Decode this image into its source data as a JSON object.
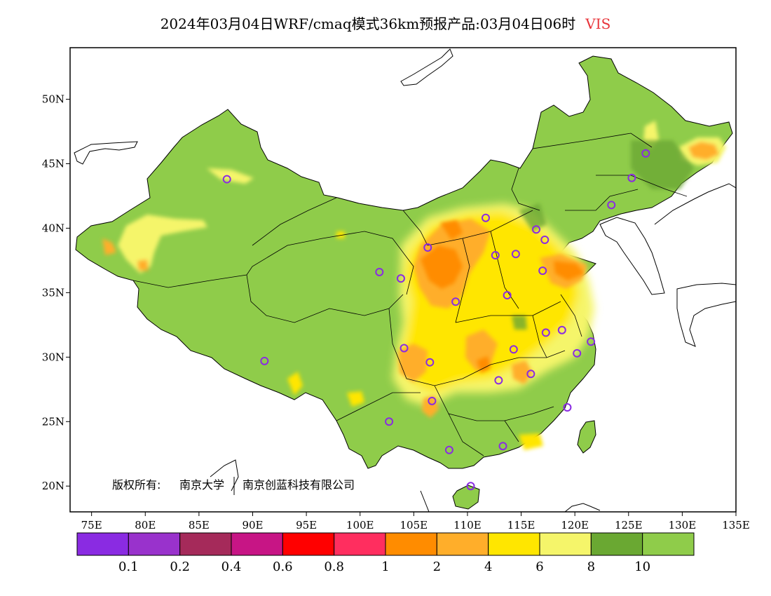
{
  "title": {
    "main": "2024年03月04日WRF/cmaq模式36km预报产品:03月04日06时",
    "variable": "VIS",
    "variable_color": "#e8343a"
  },
  "axes": {
    "lon_ticks": [
      "75E",
      "80E",
      "85E",
      "90E",
      "95E",
      "100E",
      "105E",
      "110E",
      "115E",
      "120E",
      "125E",
      "130E",
      "135E"
    ],
    "lat_ticks": [
      "50N",
      "45N",
      "40N",
      "35N",
      "30N",
      "25N",
      "20N"
    ],
    "lon_range": [
      73,
      135
    ],
    "lat_range": [
      18,
      54
    ]
  },
  "copyright": {
    "prefix": "版权所有:",
    "org1": "南京大学",
    "org2": "南京创蓝科技有限公司"
  },
  "legend": {
    "colors": [
      "#8a2be2",
      "#9932cc",
      "#a52a5a",
      "#c71585",
      "#ff0000",
      "#ff2e5f",
      "#ff8c00",
      "#ffae2a",
      "#ffe600",
      "#f5f56a",
      "#6aa832",
      "#8fcc4a"
    ],
    "labels": [
      "0.1",
      "0.2",
      "0.4",
      "0.6",
      "0.8",
      "1",
      "2",
      "4",
      "6",
      "8",
      "10"
    ]
  },
  "stations": [
    [
      87.6,
      43.8
    ],
    [
      91.1,
      29.7
    ],
    [
      101.8,
      36.6
    ],
    [
      103.8,
      36.1
    ],
    [
      106.3,
      38.5
    ],
    [
      111.7,
      40.8
    ],
    [
      112.6,
      37.9
    ],
    [
      114.5,
      38.0
    ],
    [
      116.4,
      39.9
    ],
    [
      117.2,
      39.1
    ],
    [
      117.0,
      36.7
    ],
    [
      113.7,
      34.8
    ],
    [
      108.9,
      34.3
    ],
    [
      104.1,
      30.7
    ],
    [
      106.5,
      29.6
    ],
    [
      114.3,
      30.6
    ],
    [
      112.9,
      28.2
    ],
    [
      115.9,
      28.7
    ],
    [
      117.3,
      31.9
    ],
    [
      118.8,
      32.1
    ],
    [
      120.2,
      30.3
    ],
    [
      121.5,
      31.2
    ],
    [
      119.3,
      26.1
    ],
    [
      113.3,
      23.1
    ],
    [
      108.3,
      22.8
    ],
    [
      110.3,
      20.0
    ],
    [
      102.7,
      25.0
    ],
    [
      106.7,
      26.6
    ],
    [
      123.4,
      41.8
    ],
    [
      125.3,
      43.9
    ],
    [
      126.6,
      45.8
    ]
  ],
  "heatmap_zones": [
    {
      "level": "6",
      "color": "#ffe600",
      "lon": [
        104,
        118
      ],
      "lat": [
        32,
        40
      ]
    },
    {
      "level": "4",
      "color": "#ffae2a",
      "lon": [
        105,
        110
      ],
      "lat": [
        34,
        38
      ]
    },
    {
      "level": "2",
      "color": "#ff8c00",
      "lon": [
        106,
        110
      ],
      "lat": [
        35,
        37
      ]
    },
    {
      "level": "6",
      "color": "#ffe600",
      "lon": [
        103,
        112
      ],
      "lat": [
        27,
        32
      ]
    },
    {
      "level": "2",
      "color": "#ff8c00",
      "lon": [
        118,
        122
      ],
      "lat": [
        36,
        38
      ]
    },
    {
      "level": "6",
      "color": "#ffe600",
      "lon": [
        128,
        133
      ],
      "lat": [
        44,
        47
      ]
    },
    {
      "level": "6",
      "color": "#ffe600",
      "lon": [
        87,
        90
      ],
      "lat": [
        43,
        45
      ]
    }
  ]
}
